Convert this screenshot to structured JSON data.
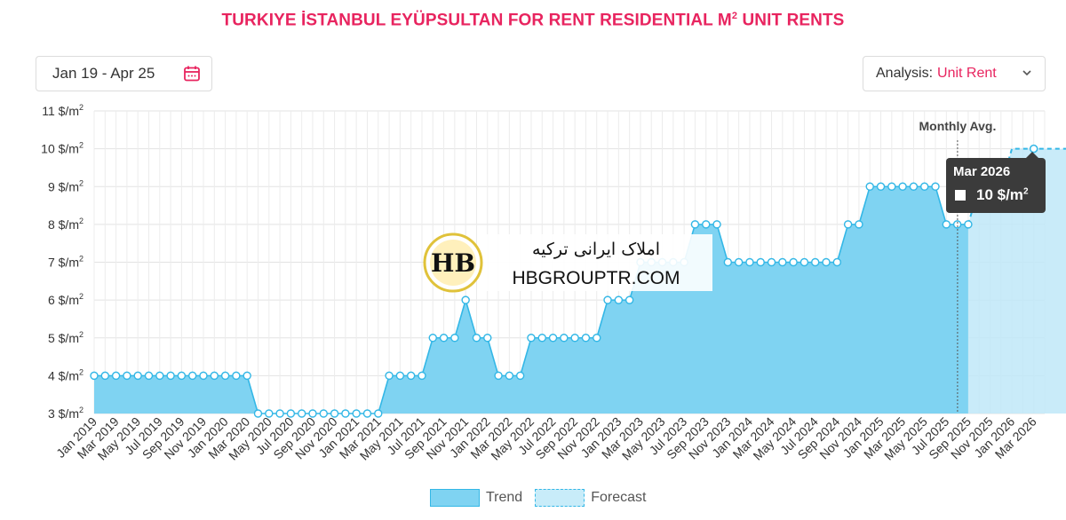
{
  "header": {
    "title": "TURKIYE İSTANBUL EYÜPSULTAN FOR RENT RESIDENTIAL M",
    "title_sup": "2",
    "title_suffix": " UNIT RENTS"
  },
  "controls": {
    "date_range": "Jan 19 - Apr 25",
    "analysis_label": "Analysis:",
    "analysis_value": "Unit Rent"
  },
  "watermark": {
    "persian": "املاک ایرانی ترکیه",
    "site": "HBGROUPTR.COM",
    "logo_text": "HB"
  },
  "tooltip": {
    "date": "Mar 2026",
    "value": "10 $/m",
    "value_sup": "2"
  },
  "legend": {
    "trend": "Trend",
    "forecast": "Forecast"
  },
  "colors": {
    "accent": "#e8245f",
    "trend_fill": "#7fd3f2",
    "trend_line": "#33b7e6",
    "forecast_fill": "#bfe8f8"
  },
  "chart_data": {
    "type": "area",
    "ylim": [
      3,
      11
    ],
    "yticks": [
      3,
      4,
      5,
      6,
      7,
      8,
      9,
      10,
      11
    ],
    "y_unit": "$/m",
    "y_unit_sup": "2",
    "grid": true,
    "marker_label": "Monthly Avg.",
    "x_tick_labels": [
      "Jan 2019",
      "Mar 2019",
      "May 2019",
      "Jul 2019",
      "Sep 2019",
      "Nov 2019",
      "Jan 2020",
      "Mar 2020",
      "May 2020",
      "Jul 2020",
      "Sep 2020",
      "Nov 2020",
      "Jan 2021",
      "Mar 2021",
      "May 2021",
      "Jul 2021",
      "Sep 2021",
      "Nov 2021",
      "Jan 2022",
      "Mar 2022",
      "May 2022",
      "Jul 2022",
      "Sep 2022",
      "Nov 2022",
      "Jan 2023",
      "Mar 2023",
      "May 2023",
      "Jul 2023",
      "Sep 2023",
      "Nov 2023",
      "Jan 2024",
      "Mar 2024",
      "May 2024",
      "Jul 2024",
      "Sep 2024",
      "Nov 2024",
      "Jan 2025",
      "Mar 2025",
      "May 2025",
      "Jul 2025",
      "Sep 2025",
      "Nov 2025",
      "Jan 2026",
      "Mar 2026"
    ],
    "series": [
      {
        "name": "Trend",
        "start": "Jan 2019",
        "values": [
          4,
          4,
          4,
          4,
          4,
          4,
          4,
          4,
          4,
          4,
          4,
          4,
          4,
          4,
          4,
          3,
          3,
          3,
          3,
          3,
          3,
          3,
          3,
          3,
          3,
          3,
          3,
          4,
          4,
          4,
          4,
          5,
          5,
          5,
          6,
          5,
          5,
          4,
          4,
          4,
          5,
          5,
          5,
          5,
          5,
          5,
          5,
          6,
          6,
          6,
          7,
          7,
          7,
          7,
          7,
          8,
          8,
          8,
          7,
          7,
          7,
          7,
          7,
          7,
          7,
          7,
          7,
          7,
          7,
          8,
          8,
          9,
          9,
          9,
          9,
          9,
          9,
          9,
          8,
          8,
          8
        ]
      },
      {
        "name": "Forecast",
        "start": "Sep 2025",
        "values": [
          8,
          9,
          9,
          9,
          10,
          10,
          10,
          10,
          10,
          10,
          10,
          10,
          10
        ]
      }
    ]
  }
}
